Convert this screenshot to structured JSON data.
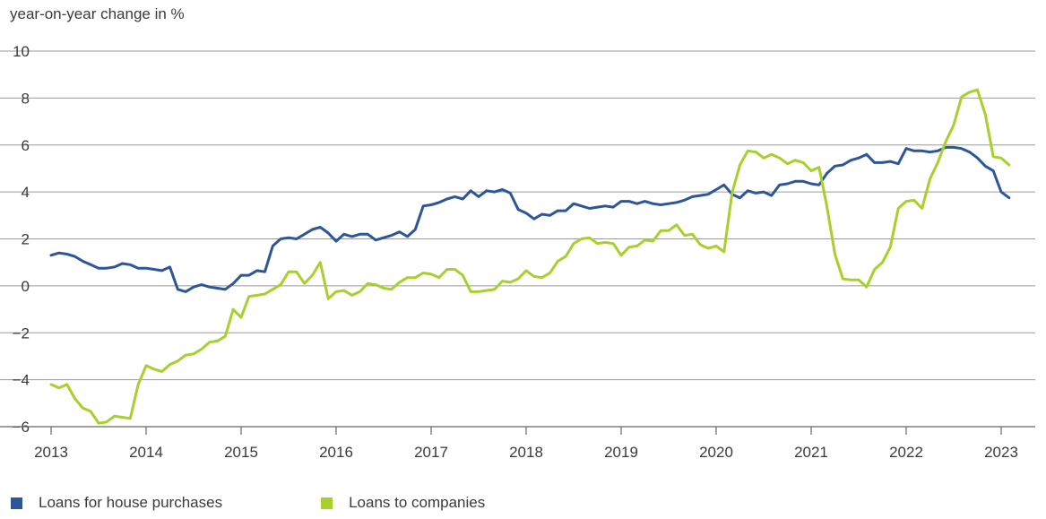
{
  "chart_data": {
    "type": "line",
    "ylabel": "year-on-year change in %",
    "xlabel": "",
    "ylim": [
      -6,
      10
    ],
    "yticks": [
      "10",
      "8",
      "6",
      "4",
      "2",
      "0",
      "−2",
      "−4",
      "−6"
    ],
    "xlim": [
      2013,
      2023.333
    ],
    "xticks": [
      "2013",
      "2014",
      "2015",
      "2016",
      "2017",
      "2018",
      "2019",
      "2020",
      "2021",
      "2022",
      "2023"
    ],
    "grid": true,
    "legend_position": "bottom-left",
    "x_start": "2013-01",
    "x_step": "monthly",
    "series": [
      {
        "name": "Loans for house purchases",
        "color": "#2c5697",
        "values": [
          1.3,
          1.4,
          1.35,
          1.25,
          1.05,
          0.9,
          0.75,
          0.75,
          0.8,
          0.95,
          0.9,
          0.75,
          0.75,
          0.7,
          0.65,
          0.8,
          -0.15,
          -0.25,
          -0.05,
          0.05,
          -0.05,
          -0.1,
          -0.15,
          0.1,
          0.45,
          0.45,
          0.65,
          0.6,
          1.7,
          2.0,
          2.05,
          2.0,
          2.2,
          2.4,
          2.5,
          2.25,
          1.9,
          2.2,
          2.1,
          2.2,
          2.2,
          1.95,
          2.05,
          2.15,
          2.3,
          2.1,
          2.4,
          3.4,
          3.45,
          3.55,
          3.7,
          3.8,
          3.7,
          4.05,
          3.8,
          4.05,
          4.0,
          4.1,
          3.95,
          3.25,
          3.1,
          2.85,
          3.05,
          3.0,
          3.2,
          3.2,
          3.5,
          3.4,
          3.3,
          3.35,
          3.4,
          3.35,
          3.6,
          3.6,
          3.5,
          3.6,
          3.5,
          3.45,
          3.5,
          3.55,
          3.65,
          3.8,
          3.85,
          3.9,
          4.1,
          4.3,
          3.9,
          3.75,
          4.05,
          3.95,
          4.0,
          3.85,
          4.3,
          4.35,
          4.45,
          4.45,
          4.35,
          4.3,
          4.8,
          5.1,
          5.15,
          5.35,
          5.45,
          5.6,
          5.25,
          5.25,
          5.3,
          5.2,
          5.85,
          5.75,
          5.75,
          5.7,
          5.75,
          5.9,
          5.9,
          5.85,
          5.7,
          5.45,
          5.1,
          4.9,
          4.0,
          3.75
        ]
      },
      {
        "name": "Loans to companies",
        "color": "#a7d02c",
        "values": [
          -4.2,
          -4.35,
          -4.2,
          -4.8,
          -5.2,
          -5.35,
          -5.85,
          -5.8,
          -5.55,
          -5.6,
          -5.65,
          -4.2,
          -3.4,
          -3.55,
          -3.65,
          -3.35,
          -3.2,
          -2.95,
          -2.9,
          -2.7,
          -2.4,
          -2.35,
          -2.15,
          -1.0,
          -1.35,
          -0.45,
          -0.4,
          -0.35,
          -0.15,
          0.05,
          0.6,
          0.6,
          0.1,
          0.45,
          1.0,
          -0.55,
          -0.25,
          -0.2,
          -0.4,
          -0.25,
          0.1,
          0.05,
          -0.1,
          -0.15,
          0.15,
          0.35,
          0.35,
          0.55,
          0.5,
          0.35,
          0.7,
          0.7,
          0.45,
          -0.25,
          -0.25,
          -0.2,
          -0.15,
          0.2,
          0.15,
          0.3,
          0.65,
          0.4,
          0.35,
          0.55,
          1.05,
          1.25,
          1.8,
          2.0,
          2.05,
          1.8,
          1.85,
          1.8,
          1.3,
          1.65,
          1.7,
          1.95,
          1.9,
          2.35,
          2.35,
          2.6,
          2.15,
          2.2,
          1.75,
          1.6,
          1.7,
          1.45,
          3.95,
          5.15,
          5.75,
          5.7,
          5.45,
          5.6,
          5.45,
          5.2,
          5.35,
          5.25,
          4.9,
          5.05,
          3.35,
          1.35,
          0.3,
          0.25,
          0.25,
          -0.05,
          0.7,
          1.0,
          1.65,
          3.3,
          3.6,
          3.65,
          3.3,
          4.55,
          5.25,
          6.15,
          6.85,
          8.05,
          8.25,
          8.35,
          7.3,
          5.5,
          5.45,
          5.15
        ]
      }
    ]
  }
}
